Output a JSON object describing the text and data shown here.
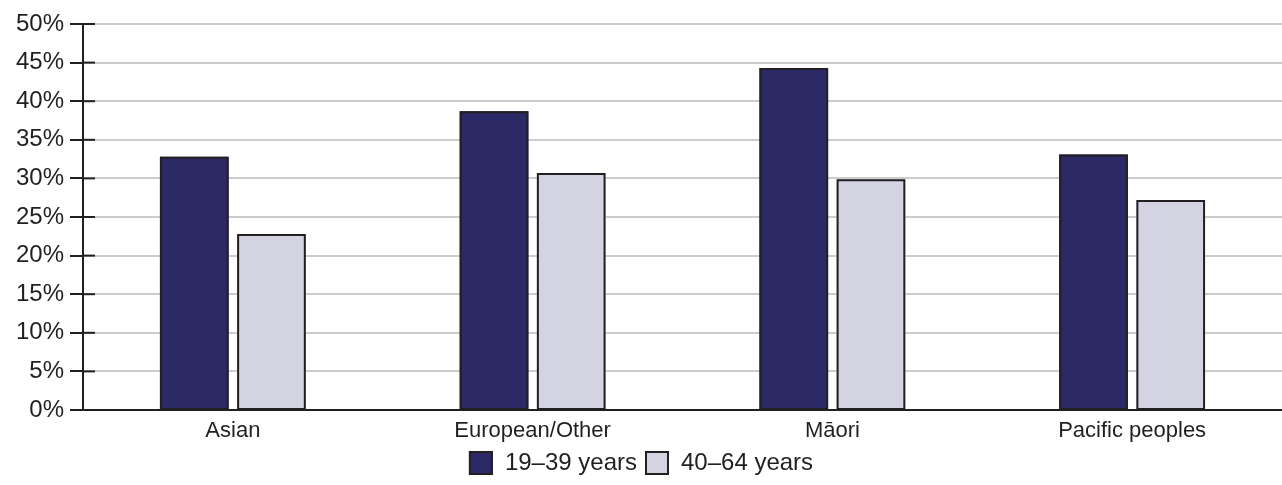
{
  "chart_data": {
    "type": "bar",
    "categories": [
      "Asian",
      "European/Other",
      "Māori",
      "Pacific peoples"
    ],
    "series": [
      {
        "name": "19–39 years",
        "color": "#2b2966",
        "values": [
          32.8,
          38.7,
          44.3,
          33.1
        ]
      },
      {
        "name": "40–64 years",
        "color": "#d4d3e2",
        "values": [
          22.8,
          30.7,
          29.9,
          27.2
        ]
      }
    ],
    "ylim": [
      0,
      50
    ],
    "yticks": [
      {
        "value": 0,
        "label": "0%"
      },
      {
        "value": 5,
        "label": "5%"
      },
      {
        "value": 10,
        "label": "10%"
      },
      {
        "value": 15,
        "label": "15%"
      },
      {
        "value": 20,
        "label": "20%"
      },
      {
        "value": 25,
        "label": "25%"
      },
      {
        "value": 30,
        "label": "30%"
      },
      {
        "value": 35,
        "label": "35%"
      },
      {
        "value": 40,
        "label": "40%"
      },
      {
        "value": 45,
        "label": "45%"
      },
      {
        "value": 50,
        "label": "50%"
      }
    ],
    "grid": "y",
    "legend": "bottom"
  }
}
